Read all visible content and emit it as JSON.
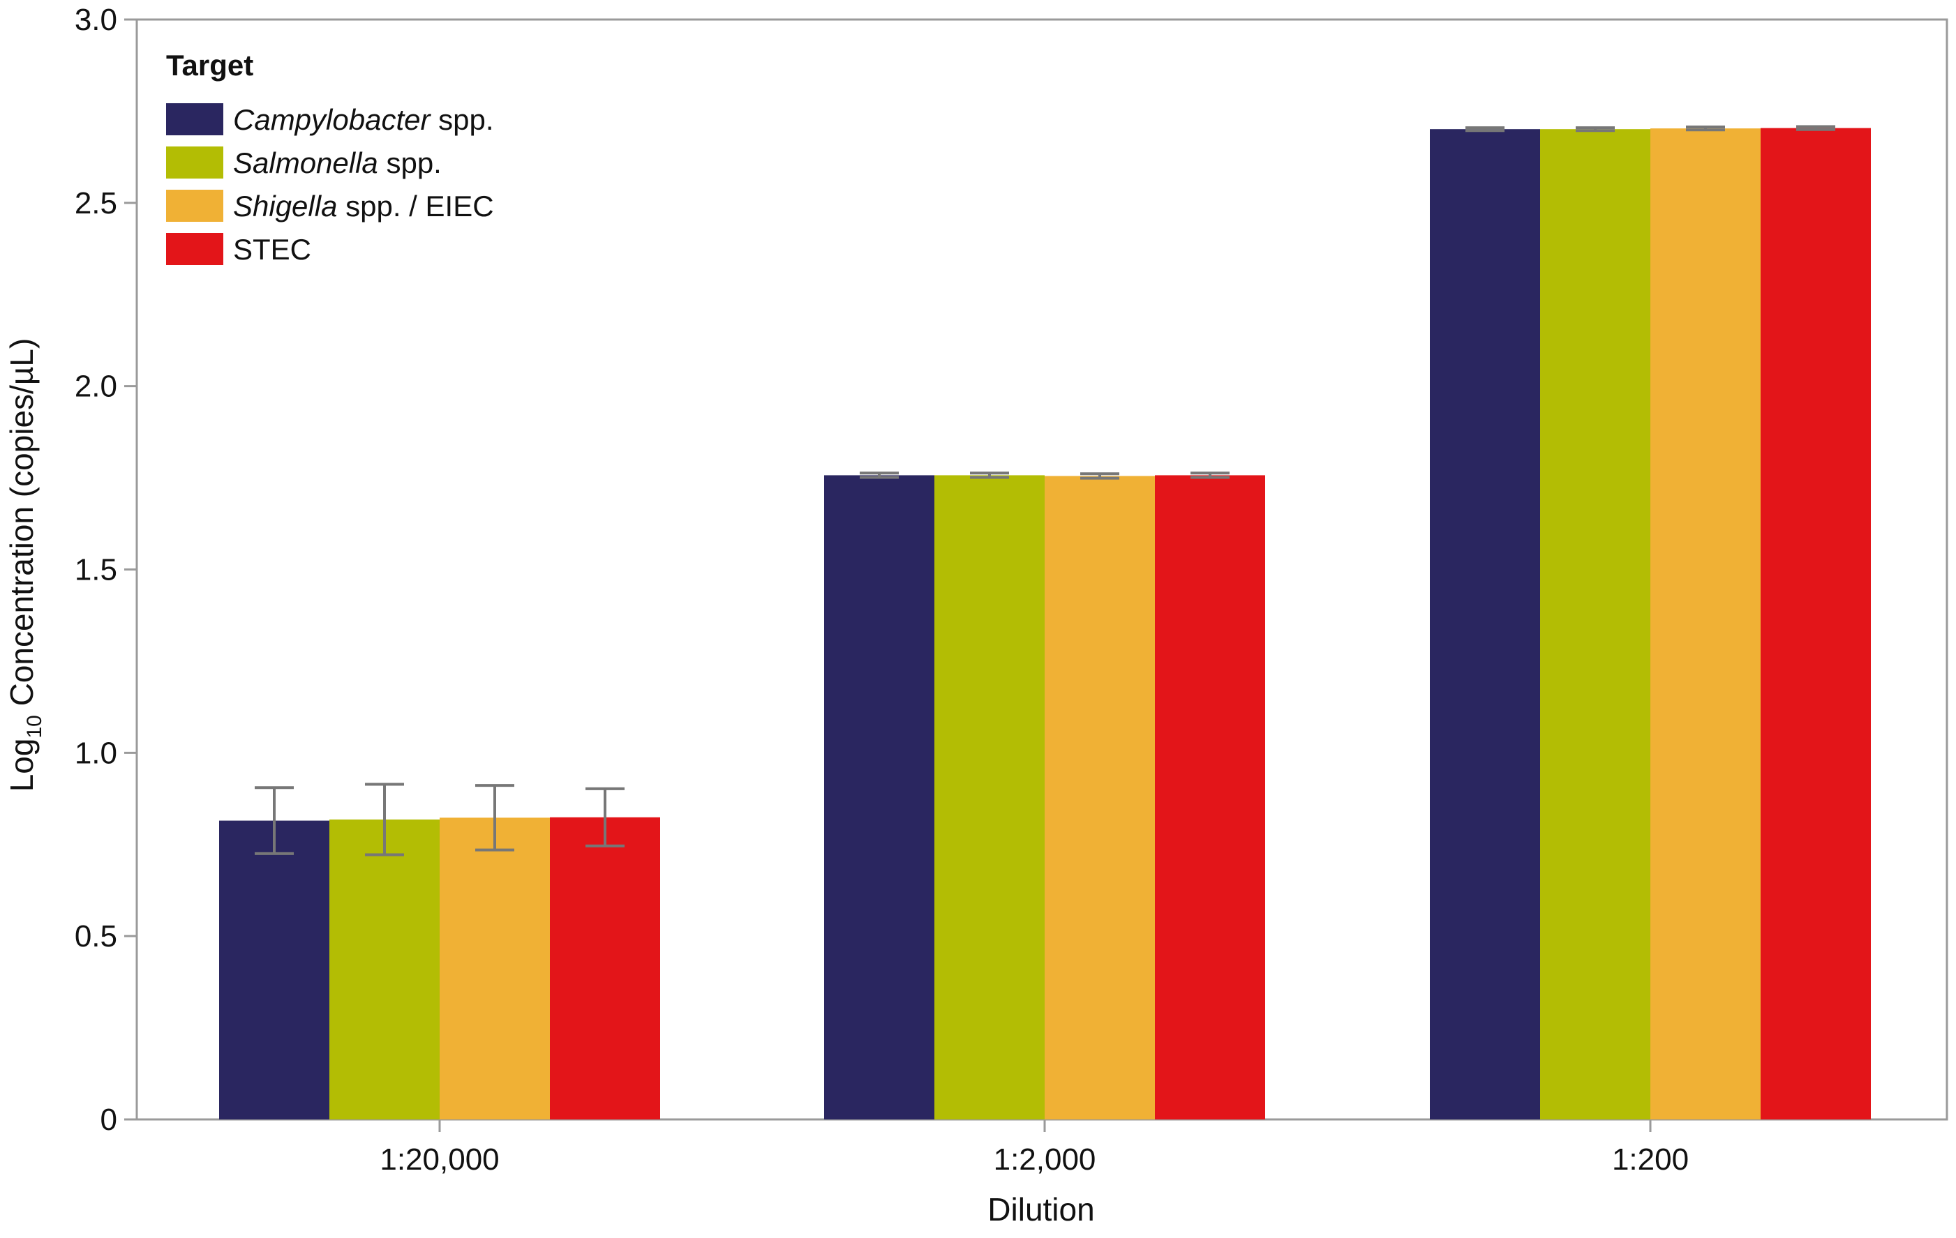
{
  "chart_data": {
    "type": "bar",
    "title": "",
    "xlabel": "Dilution",
    "ylabel": {
      "prefix": "Log",
      "subscript": "10",
      "rest": " Concentration (copies/µL)"
    },
    "ylim": [
      0,
      3.0
    ],
    "yticks": [
      "0",
      "0.5",
      "1.0",
      "1.5",
      "2.0",
      "2.5",
      "3.0"
    ],
    "ytick_values": [
      0,
      0.5,
      1.0,
      1.5,
      2.0,
      2.5,
      3.0
    ],
    "grid": false,
    "categories": [
      "1:20,000",
      "1:2,000",
      "1:200"
    ],
    "legend": {
      "title": "Target",
      "placement": "top-left"
    },
    "series": [
      {
        "name_italic": "Campylobacter",
        "name_rest": " spp.",
        "color": "#2a2660",
        "values": [
          0.815,
          1.757,
          2.701
        ],
        "error": [
          0.09,
          0.006,
          0.004
        ]
      },
      {
        "name_italic": "Salmonella",
        "name_rest": " spp.",
        "color": "#b3bd04",
        "values": [
          0.818,
          1.757,
          2.701
        ],
        "error": [
          0.096,
          0.006,
          0.004
        ]
      },
      {
        "name_italic": "Shigella",
        "name_rest": " spp. / EIEC",
        "color": "#f0b135",
        "values": [
          0.823,
          1.755,
          2.703
        ],
        "error": [
          0.088,
          0.006,
          0.004
        ]
      },
      {
        "name_italic": "",
        "name_rest": "STEC",
        "color": "#e31519",
        "values": [
          0.824,
          1.757,
          2.704
        ],
        "error": [
          0.078,
          0.006,
          0.004
        ]
      }
    ],
    "error_bar_color": "#777777",
    "axis_color": "#9a9a9a"
  }
}
